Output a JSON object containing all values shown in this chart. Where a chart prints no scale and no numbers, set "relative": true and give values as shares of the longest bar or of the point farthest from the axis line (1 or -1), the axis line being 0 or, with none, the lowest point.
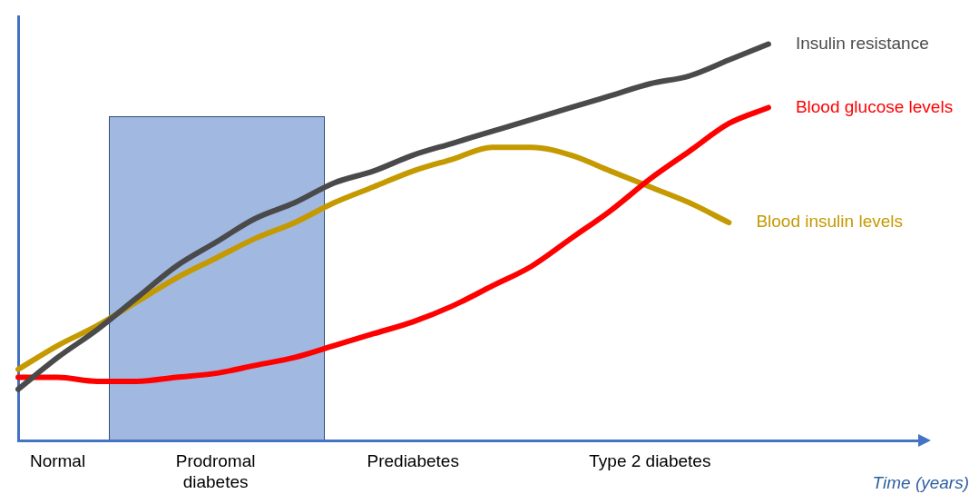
{
  "chart_data": {
    "type": "line",
    "relative": true,
    "xlabel": "Time (years)",
    "legend": false,
    "grid": false,
    "marker": "none",
    "line_style": "solid",
    "categories": [
      null,
      "Normal",
      null,
      null,
      null,
      "Prodromal diabetes",
      null,
      null,
      null,
      null,
      "Prediabetes",
      null,
      null,
      null,
      null,
      null,
      "Type 2 diabetes",
      null,
      null,
      null,
      null,
      null,
      null,
      null
    ],
    "series": [
      {
        "name": "Insulin resistance",
        "color": "#4a4a4a",
        "values": [
          0.13,
          0.21,
          0.28,
          0.36,
          0.44,
          0.5,
          0.56,
          0.6,
          0.65,
          0.68,
          0.72,
          0.75,
          0.78,
          0.81,
          0.84,
          0.87,
          0.9,
          0.92,
          0.96,
          1,
          null,
          null,
          null,
          null
        ]
      },
      {
        "name": "Blood glucose levels",
        "color": "#ff0000",
        "values": [
          0.16,
          0.16,
          0.15,
          0.15,
          0.16,
          0.17,
          0.19,
          0.21,
          0.24,
          0.27,
          0.3,
          0.34,
          0.39,
          0.44,
          0.51,
          0.58,
          0.66,
          0.73,
          0.8,
          0.84,
          null,
          null,
          null,
          null
        ]
      },
      {
        "name": "Blood insulin levels",
        "color": "#c49a00",
        "values": [
          0.18,
          0.24,
          0.29,
          0.35,
          0.41,
          0.46,
          0.51,
          0.55,
          0.6,
          0.64,
          0.68,
          0.71,
          0.74,
          0.74,
          0.72,
          0.68,
          0.64,
          0.6,
          0.55,
          null,
          null,
          null,
          null,
          null
        ]
      }
    ]
  }
}
